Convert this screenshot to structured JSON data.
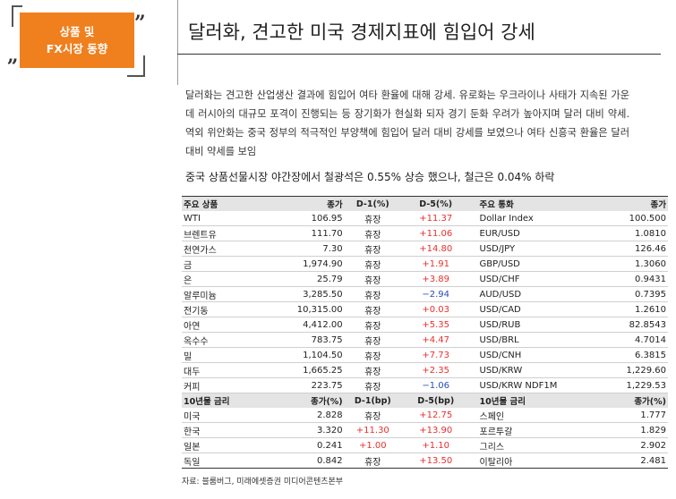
{
  "badge": {
    "line1": "상품 및",
    "line2": "FX시장 동향",
    "quote_left": "„",
    "quote_right": "”"
  },
  "title": "달러화, 견고한 미국 경제지표에 힘입어 강세",
  "paragraph": "달러화는 견고한 산업생산 결과에 힘입어 여타 환율에 대해 강세. 유로화는 우크라이나 사태가 지속된 가운데 러시아의 대규모 포격이 진행되는 등 장기화가 현실화 되자 경기 둔화 우려가 높아지며 달러 대비 약세. 역외 위안화는 중국 정부의 적극적인 부양책에 힘입어 달러 대비 강세를 보였으나 여타 신흥국 환율은 달러 대비 약세를 보임",
  "highlight": "중국 상품선물시장 야간장에서 철광석은 0.55% 상승 했으나, 철근은 0.04% 하락",
  "table": {
    "header1": [
      "주요 상품",
      "종가",
      "D-1(%)",
      "D-5(%)",
      "주요 통화",
      "종가"
    ],
    "commodities": [
      {
        "name": "WTI",
        "close": "106.95",
        "d1": "휴장",
        "d5": "+11.37",
        "d5_sign": "pos",
        "fx": "Dollar Index",
        "fx_close": "100.500"
      },
      {
        "name": "브렌트유",
        "close": "111.70",
        "d1": "휴장",
        "d5": "+11.06",
        "d5_sign": "pos",
        "fx": "EUR/USD",
        "fx_close": "1.0810"
      },
      {
        "name": "천연가스",
        "close": "7.30",
        "d1": "휴장",
        "d5": "+14.80",
        "d5_sign": "pos",
        "fx": "USD/JPY",
        "fx_close": "126.46"
      },
      {
        "name": "금",
        "close": "1,974.90",
        "d1": "휴장",
        "d5": "+1.91",
        "d5_sign": "pos",
        "fx": "GBP/USD",
        "fx_close": "1.3060"
      },
      {
        "name": "은",
        "close": "25.79",
        "d1": "휴장",
        "d5": "+3.89",
        "d5_sign": "pos",
        "fx": "USD/CHF",
        "fx_close": "0.9431"
      },
      {
        "name": "알루미늄",
        "close": "3,285.50",
        "d1": "휴장",
        "d5": "−2.94",
        "d5_sign": "neg",
        "fx": "AUD/USD",
        "fx_close": "0.7395"
      },
      {
        "name": "전기동",
        "close": "10,315.00",
        "d1": "휴장",
        "d5": "+0.03",
        "d5_sign": "pos",
        "fx": "USD/CAD",
        "fx_close": "1.2610"
      },
      {
        "name": "아연",
        "close": "4,412.00",
        "d1": "휴장",
        "d5": "+5.35",
        "d5_sign": "pos",
        "fx": "USD/RUB",
        "fx_close": "82.8543"
      },
      {
        "name": "옥수수",
        "close": "783.75",
        "d1": "휴장",
        "d5": "+4.47",
        "d5_sign": "pos",
        "fx": "USD/BRL",
        "fx_close": "4.7014"
      },
      {
        "name": "밀",
        "close": "1,104.50",
        "d1": "휴장",
        "d5": "+7.73",
        "d5_sign": "pos",
        "fx": "USD/CNH",
        "fx_close": "6.3815"
      },
      {
        "name": "대두",
        "close": "1,665.25",
        "d1": "휴장",
        "d5": "+2.35",
        "d5_sign": "pos",
        "fx": "USD/KRW",
        "fx_close": "1,229.60"
      },
      {
        "name": "커피",
        "close": "223.75",
        "d1": "휴장",
        "d5": "−1.06",
        "d5_sign": "neg",
        "fx": "USD/KRW NDF1M",
        "fx_close": "1,229.53"
      }
    ],
    "header2": [
      "10년물 금리",
      "종가(%)",
      "D-1(bp)",
      "D-5(bp)",
      "10년물 금리",
      "종가(%)"
    ],
    "rates": [
      {
        "name": "미국",
        "close": "2.828",
        "d1": "휴장",
        "d1_sign": "",
        "d5": "+12.75",
        "d5_sign": "pos",
        "name2": "스페인",
        "close2": "1.777"
      },
      {
        "name": "한국",
        "close": "3.320",
        "d1": "+11.30",
        "d1_sign": "pos",
        "d5": "+13.90",
        "d5_sign": "pos",
        "name2": "포르투갈",
        "close2": "1.829"
      },
      {
        "name": "일본",
        "close": "0.241",
        "d1": "+1.00",
        "d1_sign": "pos",
        "d5": "+1.10",
        "d5_sign": "pos",
        "name2": "그리스",
        "close2": "2.902"
      },
      {
        "name": "독일",
        "close": "0.842",
        "d1": "휴장",
        "d1_sign": "",
        "d5": "+13.50",
        "d5_sign": "pos",
        "name2": "이탈리아",
        "close2": "2.481"
      }
    ]
  },
  "source": "자료: 블룸버그, 미래에셋증권 미디어콘텐츠본부",
  "colors": {
    "badge": "#f07f1e",
    "positive": "#e8302f",
    "negative": "#2a4db8"
  }
}
